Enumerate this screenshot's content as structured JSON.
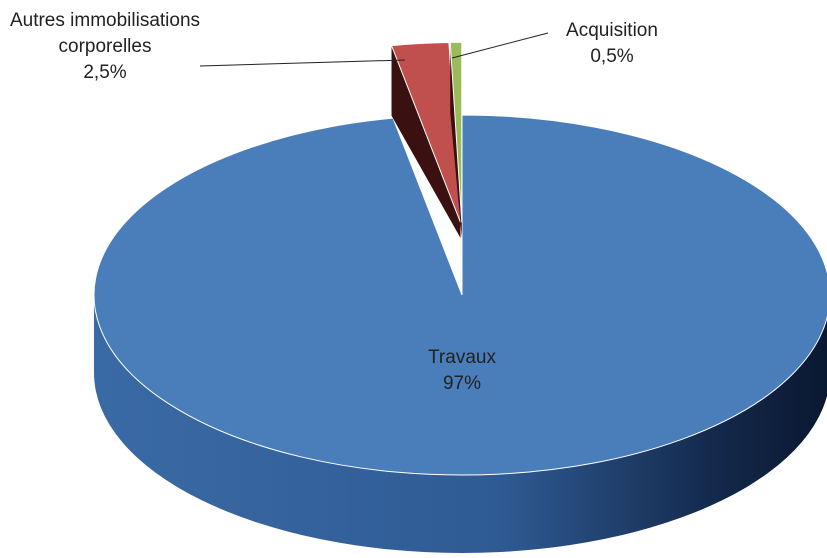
{
  "chart_data": {
    "type": "pie",
    "categories": [
      "Travaux",
      "Autres immobilisations corporelles",
      "Acquisition"
    ],
    "values": [
      97,
      2.5,
      0.5
    ],
    "value_labels": [
      "97%",
      "2,5%",
      "0,5%"
    ],
    "colors": [
      "#4a7ebb",
      "#c0504d",
      "#9bbb59"
    ]
  }
}
